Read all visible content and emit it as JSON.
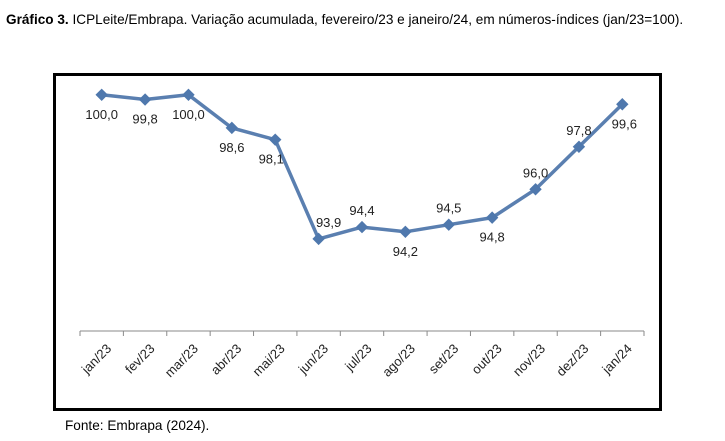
{
  "caption": {
    "prefix": "Gráfico 3.",
    "text": "ICPLeite/Embrapa. Variação acumulada, fevereiro/23 e janeiro/24, em números-índices (jan/23=100)."
  },
  "source": "Fonte: Embrapa (2024).",
  "colors": {
    "line": "#5a7fb0",
    "marker": "#4f78ad"
  },
  "chart_data": {
    "type": "line",
    "categories": [
      "jan/23",
      "fev/23",
      "mar/23",
      "abr/23",
      "mai/23",
      "jun/23",
      "jul/23",
      "ago/23",
      "set/23",
      "out/23",
      "nov/23",
      "dez/23",
      "jan/24"
    ],
    "series": [
      {
        "values": [
          100.0,
          99.8,
          100.0,
          98.6,
          98.1,
          93.9,
          94.4,
          94.2,
          94.5,
          94.8,
          96.0,
          97.8,
          99.6
        ]
      }
    ],
    "data_labels": [
      "100,0",
      "99,8",
      "100,0",
      "98,6",
      "98,1",
      "93,9",
      "94,4",
      "94,2",
      "94,5",
      "94,8",
      "96,0",
      "97,8",
      "99,6"
    ],
    "ylim": [
      90,
      100.5
    ],
    "grid": false,
    "legend": "none"
  }
}
